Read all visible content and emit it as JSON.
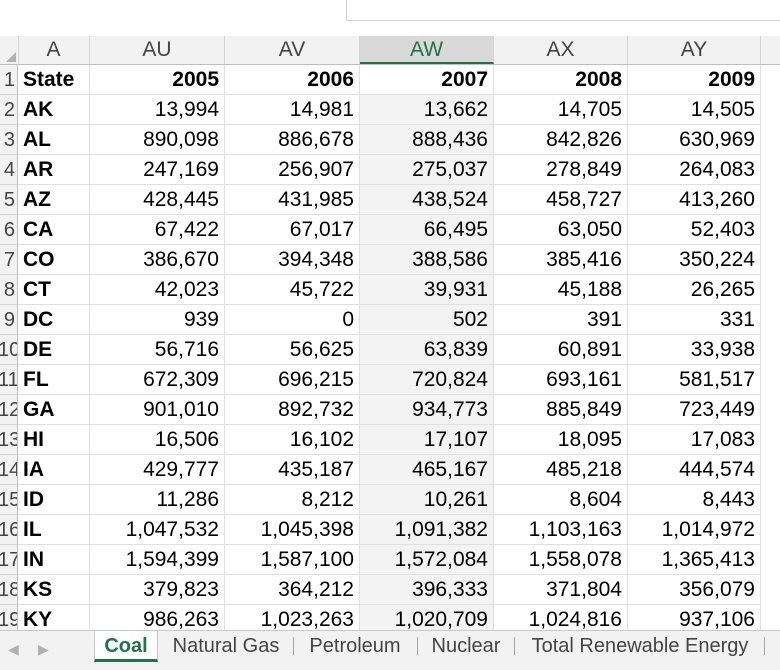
{
  "column_headers": [
    "A",
    "AU",
    "AV",
    "AW",
    "AX",
    "AY"
  ],
  "selected_column": "AW",
  "table": {
    "header": [
      "State",
      "2005",
      "2006",
      "2007",
      "2008",
      "2009"
    ],
    "rows": [
      {
        "num": "2",
        "cells": [
          "AK",
          "13,994",
          "14,981",
          "13,662",
          "14,705",
          "14,505"
        ]
      },
      {
        "num": "3",
        "cells": [
          "AL",
          "890,098",
          "886,678",
          "888,436",
          "842,826",
          "630,969"
        ]
      },
      {
        "num": "4",
        "cells": [
          "AR",
          "247,169",
          "256,907",
          "275,037",
          "278,849",
          "264,083"
        ]
      },
      {
        "num": "5",
        "cells": [
          "AZ",
          "428,445",
          "431,985",
          "438,524",
          "458,727",
          "413,260"
        ]
      },
      {
        "num": "6",
        "cells": [
          "CA",
          "67,422",
          "67,017",
          "66,495",
          "63,050",
          "52,403"
        ]
      },
      {
        "num": "7",
        "cells": [
          "CO",
          "386,670",
          "394,348",
          "388,586",
          "385,416",
          "350,224"
        ]
      },
      {
        "num": "8",
        "cells": [
          "CT",
          "42,023",
          "45,722",
          "39,931",
          "45,188",
          "26,265"
        ]
      },
      {
        "num": "9",
        "cells": [
          "DC",
          "939",
          "0",
          "502",
          "391",
          "331"
        ]
      },
      {
        "num": "10",
        "cells": [
          "DE",
          "56,716",
          "56,625",
          "63,839",
          "60,891",
          "33,938"
        ]
      },
      {
        "num": "11",
        "cells": [
          "FL",
          "672,309",
          "696,215",
          "720,824",
          "693,161",
          "581,517"
        ]
      },
      {
        "num": "12",
        "cells": [
          "GA",
          "901,010",
          "892,732",
          "934,773",
          "885,849",
          "723,449"
        ]
      },
      {
        "num": "13",
        "cells": [
          "HI",
          "16,506",
          "16,102",
          "17,107",
          "18,095",
          "17,083"
        ]
      },
      {
        "num": "14",
        "cells": [
          "IA",
          "429,777",
          "435,187",
          "465,167",
          "485,218",
          "444,574"
        ]
      },
      {
        "num": "15",
        "cells": [
          "ID",
          "11,286",
          "8,212",
          "10,261",
          "8,604",
          "8,443"
        ]
      },
      {
        "num": "16",
        "cells": [
          "IL",
          "1,047,532",
          "1,045,398",
          "1,091,382",
          "1,103,163",
          "1,014,972"
        ]
      },
      {
        "num": "17",
        "cells": [
          "IN",
          "1,594,399",
          "1,587,100",
          "1,572,084",
          "1,558,078",
          "1,365,413"
        ]
      },
      {
        "num": "18",
        "cells": [
          "KS",
          "379,823",
          "364,212",
          "396,333",
          "371,804",
          "356,079"
        ]
      },
      {
        "num": "19",
        "cells": [
          "KY",
          "986,263",
          "1,023,263",
          "1,020,709",
          "1,024,816",
          "937,106"
        ]
      }
    ]
  },
  "sheet_tabs": [
    "Coal",
    "Natural Gas",
    "Petroleum",
    "Nuclear",
    "Total Renewable Energy"
  ],
  "active_tab": "Coal",
  "nav_icons": [
    "scroll-left-icon",
    "scroll-right-icon"
  ],
  "colors": {
    "accent": "#217346",
    "header_bg": "#f2f2f2",
    "selected_header_bg": "#d9d9d9"
  }
}
